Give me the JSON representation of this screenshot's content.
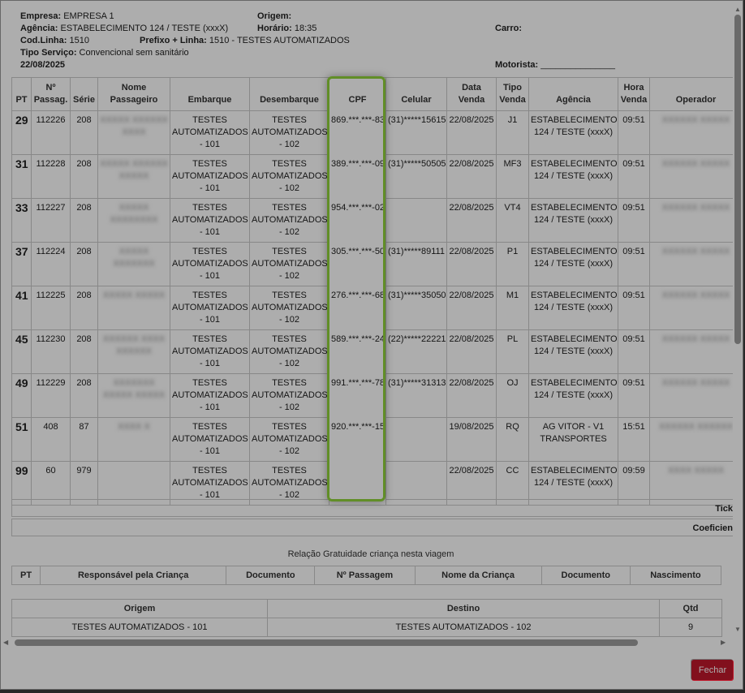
{
  "header": {
    "empresa_label": "Empresa:",
    "empresa_value": "EMPRESA 1",
    "origem_label": "Origem:",
    "origem_value": "",
    "agencia_label": "Agência:",
    "agencia_value": "ESTABELECIMENTO 124 / TESTE (xxxX)",
    "horario_label": "Horário:",
    "horario_value": "18:35",
    "carro_label": "Carro:",
    "carro_value": "",
    "codlinha_label": "Cod.Linha:",
    "codlinha_value": "1510",
    "prefixo_label": "Prefixo + Linha:",
    "prefixo_value": "1510 - TESTES AUTOMATIZADOS",
    "tiposervico_label": "Tipo Serviço:",
    "tiposervico_value": "Convencional sem sanitário",
    "date": "22/08/2025",
    "motorista_label": "Motorista:",
    "motorista_value": "_______________"
  },
  "table": {
    "columns": [
      "PT",
      "Nº Passag.",
      "Série",
      "Nome Passageiro",
      "Embarque",
      "Desembarque",
      "CPF",
      "Celular",
      "Data Venda",
      "Tipo Venda",
      "Agência",
      "Hora Venda",
      "Operador"
    ],
    "rows": [
      {
        "pt": "29",
        "passag": "112226",
        "serie": "208",
        "nome": "XXXXX XXXXXX XXXX",
        "embarque": "TESTES AUTOMATIZADOS - 101",
        "desembarque": "TESTES AUTOMATIZADOS - 102",
        "cpf": "869.***.***-83",
        "celular": "(31)*****15615",
        "data": "22/08/2025",
        "tipo": "J1",
        "agencia": "ESTABELECIMENTO 124 / TESTE (xxxX)",
        "hora": "09:51",
        "operador": "XXXXXX XXXXX"
      },
      {
        "pt": "31",
        "passag": "112228",
        "serie": "208",
        "nome": "XXXXX XXXXXX XXXXX",
        "embarque": "TESTES AUTOMATIZADOS - 101",
        "desembarque": "TESTES AUTOMATIZADOS - 102",
        "cpf": "389.***.***-09",
        "celular": "(31)*****50505",
        "data": "22/08/2025",
        "tipo": "MF3",
        "agencia": "ESTABELECIMENTO 124 / TESTE (xxxX)",
        "hora": "09:51",
        "operador": "XXXXXX XXXXX"
      },
      {
        "pt": "33",
        "passag": "112227",
        "serie": "208",
        "nome": "XXXXX XXXXXXXX",
        "embarque": "TESTES AUTOMATIZADOS - 101",
        "desembarque": "TESTES AUTOMATIZADOS - 102",
        "cpf": "954.***.***-02",
        "celular": "",
        "data": "22/08/2025",
        "tipo": "VT4",
        "agencia": "ESTABELECIMENTO 124 / TESTE (xxxX)",
        "hora": "09:51",
        "operador": "XXXXXX XXXXX"
      },
      {
        "pt": "37",
        "passag": "112224",
        "serie": "208",
        "nome": "XXXXX XXXXXXX",
        "embarque": "TESTES AUTOMATIZADOS - 101",
        "desembarque": "TESTES AUTOMATIZADOS - 102",
        "cpf": "305.***.***-50",
        "celular": "(31)*****89111",
        "data": "22/08/2025",
        "tipo": "P1",
        "agencia": "ESTABELECIMENTO 124 / TESTE (xxxX)",
        "hora": "09:51",
        "operador": "XXXXXX XXXXX"
      },
      {
        "pt": "41",
        "passag": "112225",
        "serie": "208",
        "nome": "XXXXX XXXXX",
        "embarque": "TESTES AUTOMATIZADOS - 101",
        "desembarque": "TESTES AUTOMATIZADOS - 102",
        "cpf": "276.***.***-68",
        "celular": "(31)*****35050",
        "data": "22/08/2025",
        "tipo": "M1",
        "agencia": "ESTABELECIMENTO 124 / TESTE (xxxX)",
        "hora": "09:51",
        "operador": "XXXXXX XXXXX"
      },
      {
        "pt": "45",
        "passag": "112230",
        "serie": "208",
        "nome": "XXXXXX XXXX XXXXXX",
        "embarque": "TESTES AUTOMATIZADOS - 101",
        "desembarque": "TESTES AUTOMATIZADOS - 102",
        "cpf": "589.***.***-24",
        "celular": "(22)*****22221",
        "data": "22/08/2025",
        "tipo": "PL",
        "agencia": "ESTABELECIMENTO 124 / TESTE (xxxX)",
        "hora": "09:51",
        "operador": "XXXXXX XXXXX"
      },
      {
        "pt": "49",
        "passag": "112229",
        "serie": "208",
        "nome": "XXXXXXX XXXXX XXXXX",
        "embarque": "TESTES AUTOMATIZADOS - 101",
        "desembarque": "TESTES AUTOMATIZADOS - 102",
        "cpf": "991.***.***-78",
        "celular": "(31)*****31313",
        "data": "22/08/2025",
        "tipo": "OJ",
        "agencia": "ESTABELECIMENTO 124 / TESTE (xxxX)",
        "hora": "09:51",
        "operador": "XXXXXX XXXXX"
      },
      {
        "pt": "51",
        "passag": "408",
        "serie": "87",
        "nome": "XXXX X",
        "embarque": "TESTES AUTOMATIZADOS - 101",
        "desembarque": "TESTES AUTOMATIZADOS - 102",
        "cpf": "920.***.***-15",
        "celular": "",
        "data": "19/08/2025",
        "tipo": "RQ",
        "agencia": "AG VITOR - V1 TRANSPORTES",
        "hora": "15:51",
        "operador": "XXXXXX XXXXXX"
      },
      {
        "pt": "99",
        "passag": "60",
        "serie": "979",
        "nome": "",
        "embarque": "TESTES AUTOMATIZADOS - 101",
        "desembarque": "TESTES AUTOMATIZADOS - 102",
        "cpf": "",
        "celular": "",
        "data": "22/08/2025",
        "tipo": "CC",
        "agencia": "ESTABELECIMENTO 124 / TESTE (xxxX)",
        "hora": "09:59",
        "operador": "XXXX XXXXX"
      }
    ]
  },
  "footer_rows": [
    "Tick",
    "Coeficien"
  ],
  "gratuidade": {
    "caption": "Relação Gratuidade criança nesta viagem",
    "columns": [
      "PT",
      "Responsável pela Criança",
      "Documento",
      "Nº Passagem",
      "Nome da Criança",
      "Documento",
      "Nascimento"
    ]
  },
  "origem_destino": {
    "columns": [
      "Origem",
      "Destino",
      "Qtd"
    ],
    "rows": [
      {
        "origem": "TESTES AUTOMATIZADOS - 101",
        "destino": "TESTES AUTOMATIZADOS - 102",
        "qtd": "9"
      }
    ]
  },
  "buttons": {
    "close_label": "Fechar"
  },
  "colors": {
    "highlight": "#8fd23a",
    "close_button": "#c0182b"
  }
}
